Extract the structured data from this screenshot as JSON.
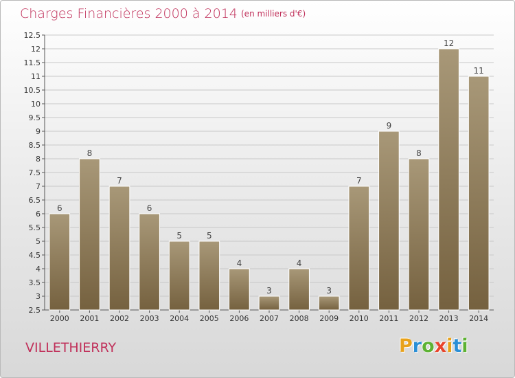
{
  "header": {
    "title": "Charges Financières 2000 à 2014",
    "subtitle": "(en milliers d'€)"
  },
  "footer": {
    "commune": "VILLETHIERRY",
    "logo_letters": [
      "P",
      "r",
      "o",
      "x",
      "i",
      "t",
      "i"
    ],
    "logo_colors": [
      "#e8a21a",
      "#2a8fd6",
      "#5db233",
      "#e8452c",
      "#e8a21a",
      "#2a8fd6",
      "#5db233"
    ]
  },
  "colors": {
    "bar_top": "#a89878",
    "bar_bottom": "#75613f",
    "title": "#c0305a",
    "grid": "#c8c8c8"
  },
  "chart_data": {
    "type": "bar",
    "title": "Charges Financières 2000 à 2014",
    "subtitle": "(en milliers d'€)",
    "categories": [
      "2000",
      "2001",
      "2002",
      "2003",
      "2004",
      "2005",
      "2006",
      "2007",
      "2008",
      "2009",
      "2010",
      "2011",
      "2012",
      "2013",
      "2014"
    ],
    "values": [
      6,
      8,
      7,
      6,
      5,
      5,
      4,
      3,
      4,
      3,
      7,
      9,
      8,
      12,
      11
    ],
    "value_labels": [
      "6",
      "8",
      "7",
      "6",
      "5",
      "5",
      "4",
      "3",
      "4",
      "3",
      "7",
      "9",
      "8",
      "12",
      "11"
    ],
    "ylim": [
      2.5,
      12.5
    ],
    "yticks": [
      "2.5",
      "3",
      "3.5",
      "4",
      "4.5",
      "5",
      "5.5",
      "6",
      "6.5",
      "7",
      "7.5",
      "8",
      "8.5",
      "9",
      "9.5",
      "10",
      "10.5",
      "11",
      "11.5",
      "12",
      "12.5"
    ],
    "grid": true,
    "legend": "none"
  }
}
